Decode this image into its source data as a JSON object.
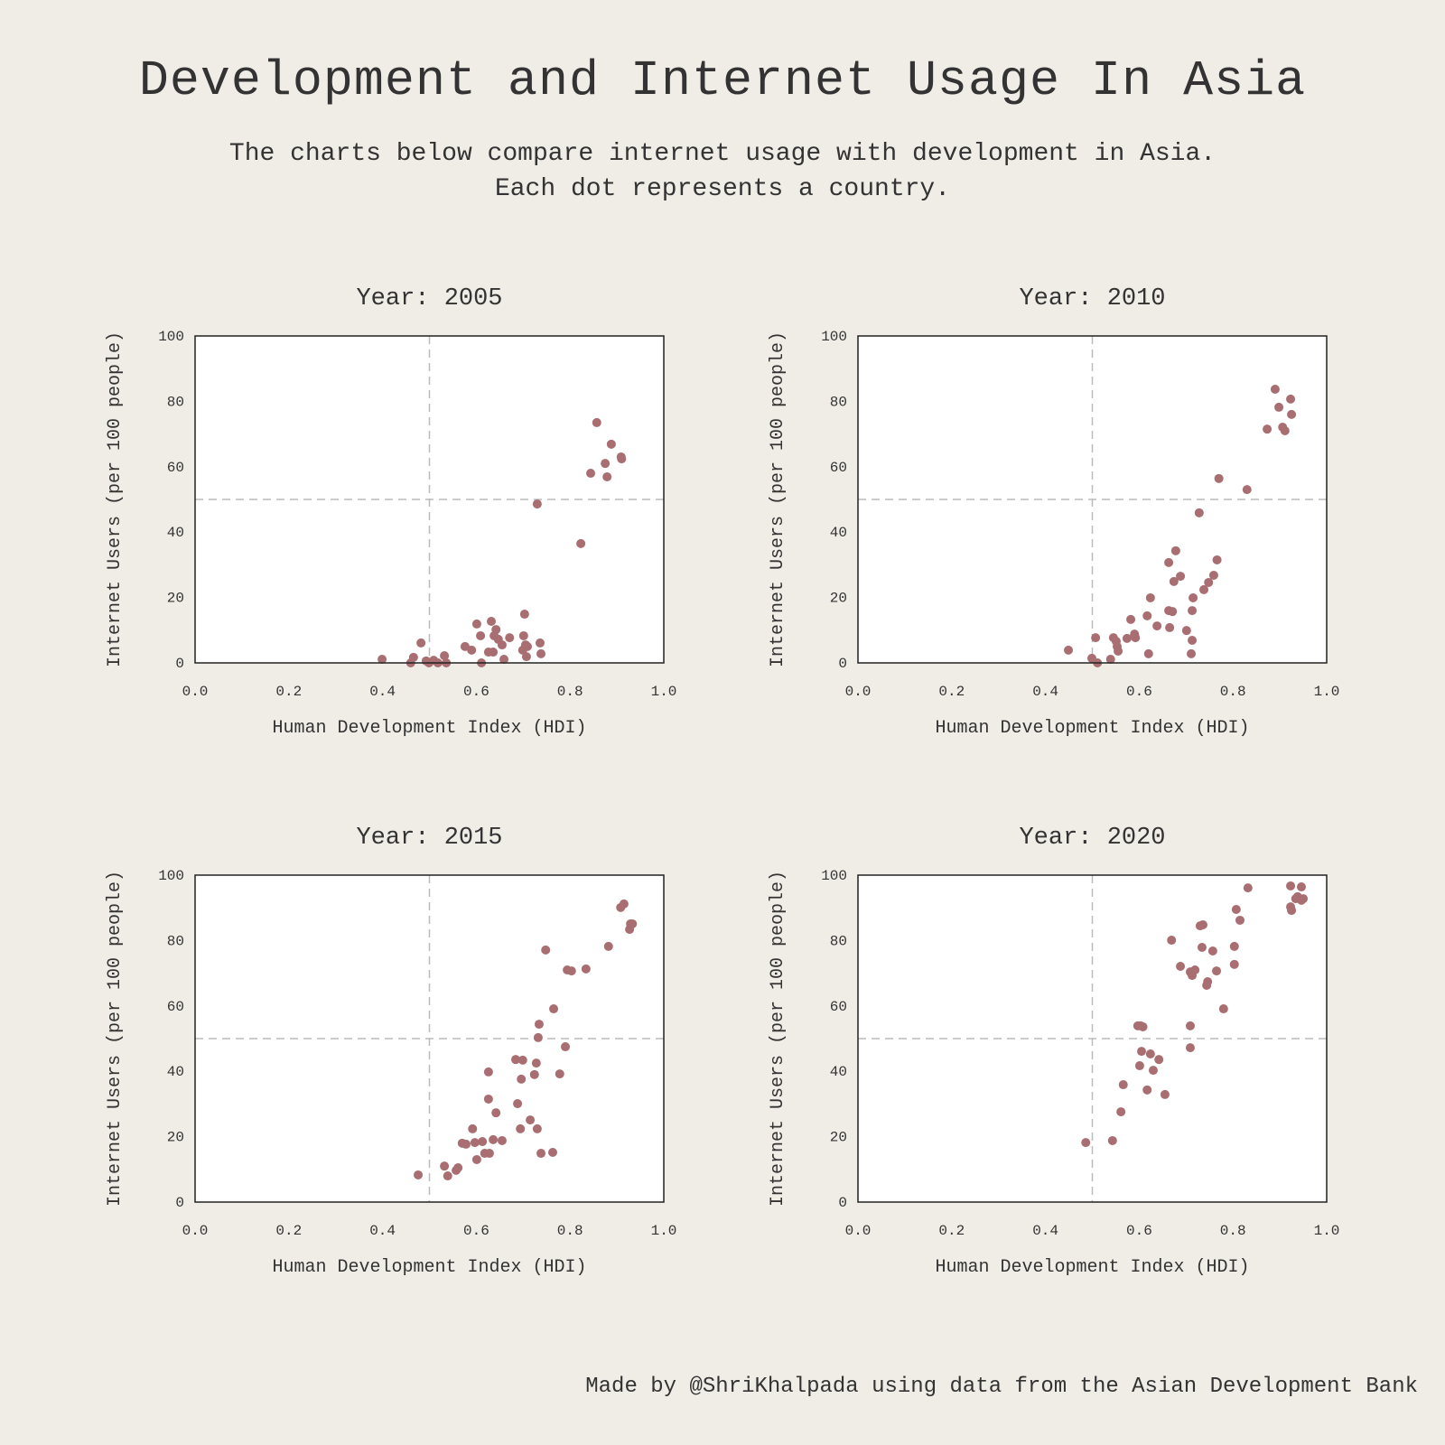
{
  "title": "Development and Internet Usage In Asia",
  "subtitle_lines": [
    "The charts below compare internet usage with development in Asia.",
    "Each dot represents a country."
  ],
  "footer": "Made by @ShriKhalpada using data from the Asian Development Bank",
  "colors": {
    "background": "#f0ede6",
    "dot": "#a86e71",
    "reference_line": "#bbbbbb"
  },
  "chart_data": [
    {
      "type": "scatter",
      "title": "Year: 2005",
      "xlabel": "Human Development Index (HDI)",
      "ylabel": "Internet Users (per 100 people)",
      "xlim": [
        0,
        1
      ],
      "ylim": [
        0,
        100
      ],
      "xticks": [
        "0.0",
        "0.2",
        "0.4",
        "0.6",
        "0.8",
        "1.0"
      ],
      "yticks": [
        "0",
        "20",
        "40",
        "60",
        "80",
        "100"
      ],
      "reference_lines": {
        "x": 0.5,
        "y": 50
      },
      "points": [
        [
          0.399,
          1.1
        ],
        [
          0.46,
          0
        ],
        [
          0.466,
          1.7
        ],
        [
          0.482,
          6.1
        ],
        [
          0.493,
          0.6
        ],
        [
          0.499,
          0
        ],
        [
          0.509,
          0.8
        ],
        [
          0.518,
          0
        ],
        [
          0.532,
          2.2
        ],
        [
          0.536,
          0
        ],
        [
          0.576,
          5.0
        ],
        [
          0.59,
          3.9
        ],
        [
          0.601,
          11.9
        ],
        [
          0.609,
          8.3
        ],
        [
          0.611,
          0
        ],
        [
          0.626,
          3.3
        ],
        [
          0.632,
          12.7
        ],
        [
          0.636,
          3.3
        ],
        [
          0.638,
          8.3
        ],
        [
          0.642,
          10.2
        ],
        [
          0.647,
          7.2
        ],
        [
          0.655,
          5.5
        ],
        [
          0.659,
          1.1
        ],
        [
          0.671,
          7.7
        ],
        [
          0.699,
          3.9
        ],
        [
          0.701,
          8.3
        ],
        [
          0.703,
          14.9
        ],
        [
          0.705,
          5.5
        ],
        [
          0.707,
          1.9
        ],
        [
          0.709,
          5.0
        ],
        [
          0.736,
          6.1
        ],
        [
          0.738,
          2.8
        ],
        [
          0.73,
          48.6
        ],
        [
          0.823,
          36.5
        ],
        [
          0.844,
          58.0
        ],
        [
          0.857,
          73.5
        ],
        [
          0.875,
          61.0
        ],
        [
          0.879,
          56.9
        ],
        [
          0.888,
          66.9
        ],
        [
          0.909,
          63.0
        ],
        [
          0.91,
          62.4
        ]
      ]
    },
    {
      "type": "scatter",
      "title": "Year: 2010",
      "xlabel": "Human Development Index (HDI)",
      "ylabel": "Internet Users (per 100 people)",
      "xlim": [
        0,
        1
      ],
      "ylim": [
        0,
        100
      ],
      "xticks": [
        "0.0",
        "0.2",
        "0.4",
        "0.6",
        "0.8",
        "1.0"
      ],
      "yticks": [
        "0",
        "20",
        "40",
        "60",
        "80",
        "100"
      ],
      "reference_lines": {
        "x": 0.5,
        "y": 50
      },
      "points": [
        [
          0.449,
          3.9
        ],
        [
          0.499,
          1.4
        ],
        [
          0.507,
          7.7
        ],
        [
          0.511,
          0
        ],
        [
          0.539,
          1.1
        ],
        [
          0.545,
          7.7
        ],
        [
          0.551,
          6.6
        ],
        [
          0.553,
          5.0
        ],
        [
          0.555,
          3.6
        ],
        [
          0.574,
          7.5
        ],
        [
          0.582,
          13.3
        ],
        [
          0.59,
          8.8
        ],
        [
          0.592,
          7.7
        ],
        [
          0.617,
          14.4
        ],
        [
          0.62,
          2.8
        ],
        [
          0.624,
          19.9
        ],
        [
          0.638,
          11.3
        ],
        [
          0.663,
          30.7
        ],
        [
          0.663,
          16.0
        ],
        [
          0.665,
          10.8
        ],
        [
          0.671,
          15.7
        ],
        [
          0.674,
          24.9
        ],
        [
          0.678,
          34.3
        ],
        [
          0.688,
          26.5
        ],
        [
          0.701,
          9.9
        ],
        [
          0.711,
          2.8
        ],
        [
          0.713,
          6.9
        ],
        [
          0.713,
          16.0
        ],
        [
          0.715,
          19.9
        ],
        [
          0.728,
          45.9
        ],
        [
          0.738,
          22.4
        ],
        [
          0.748,
          24.6
        ],
        [
          0.759,
          26.8
        ],
        [
          0.766,
          31.5
        ],
        [
          0.77,
          56.4
        ],
        [
          0.83,
          53.0
        ],
        [
          0.873,
          71.5
        ],
        [
          0.89,
          83.7
        ],
        [
          0.898,
          78.2
        ],
        [
          0.906,
          72.1
        ],
        [
          0.911,
          71.0
        ],
        [
          0.923,
          80.7
        ],
        [
          0.925,
          76.0
        ]
      ]
    },
    {
      "type": "scatter",
      "title": "Year: 2015",
      "xlabel": "Human Development Index (HDI)",
      "ylabel": "Internet Users (per 100 people)",
      "xlim": [
        0,
        1
      ],
      "ylim": [
        0,
        100
      ],
      "xticks": [
        "0.0",
        "0.2",
        "0.4",
        "0.6",
        "0.8",
        "1.0"
      ],
      "yticks": [
        "0",
        "20",
        "40",
        "60",
        "80",
        "100"
      ],
      "reference_lines": {
        "x": 0.5,
        "y": 50
      },
      "points": [
        [
          0.476,
          8.3
        ],
        [
          0.532,
          11.0
        ],
        [
          0.539,
          8.0
        ],
        [
          0.557,
          9.7
        ],
        [
          0.561,
          10.5
        ],
        [
          0.57,
          18.0
        ],
        [
          0.578,
          17.7
        ],
        [
          0.592,
          22.4
        ],
        [
          0.597,
          18.2
        ],
        [
          0.601,
          13.0
        ],
        [
          0.613,
          18.5
        ],
        [
          0.618,
          14.9
        ],
        [
          0.628,
          14.9
        ],
        [
          0.626,
          31.5
        ],
        [
          0.626,
          39.8
        ],
        [
          0.636,
          19.1
        ],
        [
          0.642,
          27.3
        ],
        [
          0.655,
          18.8
        ],
        [
          0.684,
          43.6
        ],
        [
          0.688,
          30.1
        ],
        [
          0.694,
          22.4
        ],
        [
          0.696,
          37.6
        ],
        [
          0.699,
          43.4
        ],
        [
          0.715,
          25.1
        ],
        [
          0.724,
          39.0
        ],
        [
          0.728,
          42.5
        ],
        [
          0.73,
          22.4
        ],
        [
          0.732,
          50.3
        ],
        [
          0.734,
          54.4
        ],
        [
          0.738,
          14.9
        ],
        [
          0.748,
          77.1
        ],
        [
          0.763,
          15.2
        ],
        [
          0.765,
          59.1
        ],
        [
          0.778,
          39.2
        ],
        [
          0.79,
          47.5
        ],
        [
          0.794,
          71.0
        ],
        [
          0.803,
          70.7
        ],
        [
          0.834,
          71.3
        ],
        [
          0.882,
          78.2
        ],
        [
          0.908,
          90.1
        ],
        [
          0.915,
          91.2
        ],
        [
          0.927,
          83.4
        ],
        [
          0.929,
          85.1
        ],
        [
          0.933,
          85.1
        ]
      ]
    },
    {
      "type": "scatter",
      "title": "Year: 2020",
      "xlabel": "Human Development Index (HDI)",
      "ylabel": "Internet Users (per 100 people)",
      "xlim": [
        0,
        1
      ],
      "ylim": [
        0,
        100
      ],
      "xticks": [
        "0.0",
        "0.2",
        "0.4",
        "0.6",
        "0.8",
        "1.0"
      ],
      "yticks": [
        "0",
        "20",
        "40",
        "60",
        "80",
        "100"
      ],
      "reference_lines": {
        "x": 0.5,
        "y": 50
      },
      "points": [
        [
          0.486,
          18.2
        ],
        [
          0.543,
          18.8
        ],
        [
          0.561,
          27.6
        ],
        [
          0.566,
          35.9
        ],
        [
          0.597,
          53.9
        ],
        [
          0.603,
          53.9
        ],
        [
          0.608,
          53.6
        ],
        [
          0.601,
          41.7
        ],
        [
          0.605,
          46.1
        ],
        [
          0.617,
          34.3
        ],
        [
          0.624,
          45.3
        ],
        [
          0.63,
          40.3
        ],
        [
          0.642,
          43.6
        ],
        [
          0.655,
          32.9
        ],
        [
          0.669,
          80.1
        ],
        [
          0.688,
          72.1
        ],
        [
          0.709,
          53.9
        ],
        [
          0.709,
          47.2
        ],
        [
          0.709,
          70.4
        ],
        [
          0.713,
          69.3
        ],
        [
          0.719,
          71.0
        ],
        [
          0.73,
          84.5
        ],
        [
          0.734,
          77.9
        ],
        [
          0.736,
          84.8
        ],
        [
          0.744,
          66.3
        ],
        [
          0.746,
          67.4
        ],
        [
          0.757,
          76.8
        ],
        [
          0.765,
          70.7
        ],
        [
          0.78,
          59.1
        ],
        [
          0.803,
          78.2
        ],
        [
          0.803,
          72.7
        ],
        [
          0.807,
          89.5
        ],
        [
          0.815,
          86.2
        ],
        [
          0.832,
          96.1
        ],
        [
          0.923,
          96.7
        ],
        [
          0.923,
          90.3
        ],
        [
          0.925,
          89.2
        ],
        [
          0.934,
          92.8
        ],
        [
          0.938,
          93.4
        ],
        [
          0.946,
          96.4
        ],
        [
          0.946,
          92.3
        ],
        [
          0.95,
          92.8
        ]
      ]
    }
  ]
}
